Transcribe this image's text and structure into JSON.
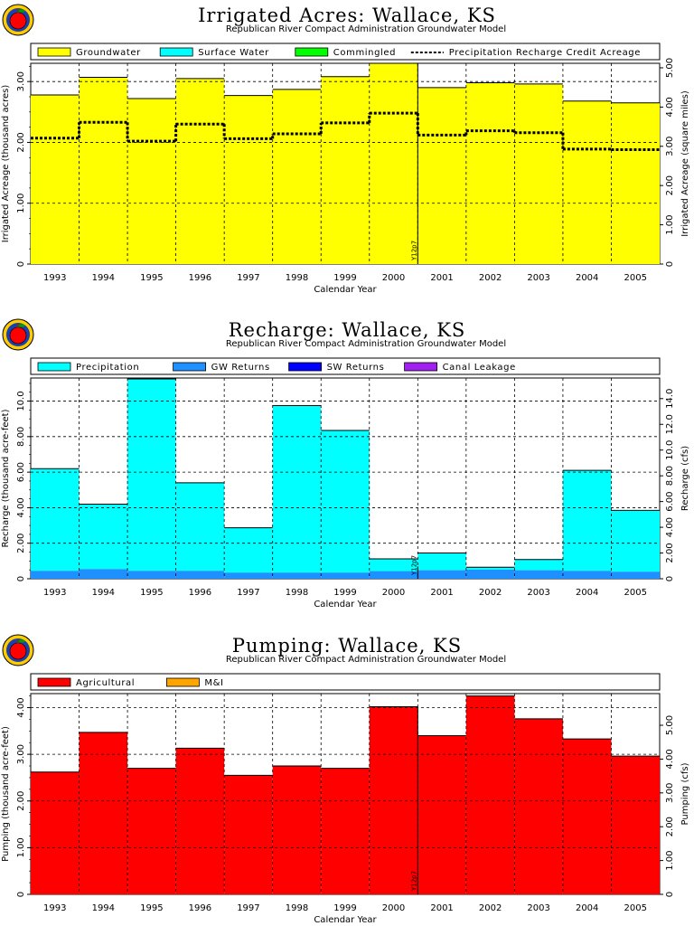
{
  "chart_data": [
    {
      "type": "bar",
      "title": "Irrigated Acres: Wallace, KS",
      "subtitle": "Republican River Compact Administration Groundwater Model",
      "xlabel": "Calendar Year",
      "ylabel": "Irrigated Acreage (thousand acres)",
      "ylabel_right": "Irrigated Acreage (square miles)",
      "ylim": [
        0,
        3.3
      ],
      "categories": [
        "1993",
        "1994",
        "1995",
        "1996",
        "1997",
        "1998",
        "1999",
        "2000",
        "2001",
        "2002",
        "2003",
        "2004",
        "2005"
      ],
      "yticks": [
        {
          "v": 0,
          "l": "0"
        },
        {
          "v": 1,
          "l": "1.00"
        },
        {
          "v": 2,
          "l": "2.00"
        },
        {
          "v": 3,
          "l": "3.00"
        }
      ],
      "yticks_right": [
        {
          "v": 0,
          "l": "0"
        },
        {
          "v": 1,
          "l": "1.00"
        },
        {
          "v": 2,
          "l": "2.00"
        },
        {
          "v": 3,
          "l": "3.00"
        },
        {
          "v": 4,
          "l": "4.00"
        },
        {
          "v": 5,
          "l": "5.00"
        }
      ],
      "right_scale": 0.6452,
      "grid_dashed": [
        1,
        2,
        3
      ],
      "stacked": true,
      "series": [
        {
          "name": "Groundwater",
          "color": "#ffff00",
          "values": [
            2.78,
            3.07,
            2.72,
            3.05,
            2.77,
            2.87,
            3.08,
            3.3,
            2.9,
            2.98,
            2.96,
            2.68,
            2.65
          ]
        },
        {
          "name": "Surface Water",
          "color": "#00ffff",
          "values": [
            0,
            0,
            0,
            0,
            0,
            0,
            0,
            0,
            0,
            0,
            0,
            0,
            0
          ]
        },
        {
          "name": "Commingled",
          "color": "#00ff00",
          "values": [
            0,
            0,
            0,
            0,
            0,
            0,
            0,
            0,
            0,
            0,
            0,
            0,
            0
          ]
        }
      ],
      "line_series": {
        "name": "Precipitation Recharge Credit Acreage",
        "values": [
          2.07,
          2.33,
          2.02,
          2.3,
          2.06,
          2.14,
          2.32,
          2.48,
          2.12,
          2.19,
          2.16,
          1.89,
          1.88
        ]
      },
      "annotation": "Y12p7"
    },
    {
      "type": "bar",
      "title": "Recharge: Wallace, KS",
      "subtitle": "Republican River Compact Administration Groundwater Model",
      "xlabel": "Calendar Year",
      "ylabel": "Recharge (thousand acre-feet)",
      "ylabel_right": "Recharge (cfs)",
      "ylim": [
        0,
        11.3
      ],
      "categories": [
        "1993",
        "1994",
        "1995",
        "1996",
        "1997",
        "1998",
        "1999",
        "2000",
        "2001",
        "2002",
        "2003",
        "2004",
        "2005"
      ],
      "yticks": [
        {
          "v": 0,
          "l": "0"
        },
        {
          "v": 2,
          "l": "2.00"
        },
        {
          "v": 4,
          "l": "4.00"
        },
        {
          "v": 6,
          "l": "6.00"
        },
        {
          "v": 8,
          "l": "8.00"
        },
        {
          "v": 10,
          "l": "10.0"
        }
      ],
      "yticks_right": [
        {
          "v": 0,
          "l": "0"
        },
        {
          "v": 2,
          "l": "2.00"
        },
        {
          "v": 4,
          "l": "4.00"
        },
        {
          "v": 6,
          "l": "6.00"
        },
        {
          "v": 8,
          "l": "8.00"
        },
        {
          "v": 10,
          "l": "10.0"
        },
        {
          "v": 12,
          "l": "12.0"
        },
        {
          "v": 14,
          "l": "14.0"
        }
      ],
      "right_scale": 0.7243,
      "grid_dashed": [
        2,
        4,
        6,
        8,
        10
      ],
      "stacked": true,
      "series": [
        {
          "name": "Precipitation",
          "color": "#00ffff",
          "values": [
            5.75,
            3.65,
            10.8,
            4.95,
            2.52,
            9.4,
            8.0,
            0.69,
            0.97,
            0.13,
            0.6,
            5.65,
            3.45
          ]
        },
        {
          "name": "GW Returns",
          "color": "#1e90ff",
          "values": [
            0.45,
            0.55,
            0.45,
            0.45,
            0.35,
            0.35,
            0.35,
            0.43,
            0.48,
            0.52,
            0.48,
            0.45,
            0.4
          ]
        },
        {
          "name": "SW Returns",
          "color": "#0000ff",
          "values": [
            0,
            0,
            0,
            0,
            0,
            0,
            0,
            0,
            0,
            0,
            0,
            0,
            0
          ]
        },
        {
          "name": "Canal Leakage",
          "color": "#a020f0",
          "values": [
            0,
            0,
            0,
            0,
            0,
            0,
            0,
            0,
            0,
            0,
            0,
            0,
            0
          ]
        }
      ],
      "annotation": "Y12p7"
    },
    {
      "type": "bar",
      "title": "Pumping: Wallace, KS",
      "subtitle": "Republican River Compact Administration Groundwater Model",
      "xlabel": "Calendar Year",
      "ylabel": "Pumping (thousand acre-feet)",
      "ylabel_right": "Pumping (cfs)",
      "ylim": [
        0,
        4.3
      ],
      "categories": [
        "1993",
        "1994",
        "1995",
        "1996",
        "1997",
        "1998",
        "1999",
        "2000",
        "2001",
        "2002",
        "2003",
        "2004",
        "2005"
      ],
      "yticks": [
        {
          "v": 0,
          "l": "0"
        },
        {
          "v": 1,
          "l": "1.00"
        },
        {
          "v": 2,
          "l": "2.00"
        },
        {
          "v": 3,
          "l": "3.00"
        },
        {
          "v": 4,
          "l": "4.00"
        }
      ],
      "yticks_right": [
        {
          "v": 0,
          "l": "0"
        },
        {
          "v": 1,
          "l": "1.00"
        },
        {
          "v": 2,
          "l": "2.00"
        },
        {
          "v": 3,
          "l": "3.00"
        },
        {
          "v": 4,
          "l": "4.00"
        },
        {
          "v": 5,
          "l": "5.00"
        }
      ],
      "right_scale": 0.7243,
      "grid_dashed": [
        1,
        2,
        3,
        4
      ],
      "stacked": true,
      "series": [
        {
          "name": "Agricultural",
          "color": "#ff0000",
          "values": [
            2.62,
            3.47,
            2.7,
            3.13,
            2.55,
            2.75,
            2.7,
            4.02,
            3.4,
            4.25,
            3.76,
            3.33,
            2.96
          ]
        },
        {
          "name": "M&I",
          "color": "#ffa500",
          "values": [
            0,
            0,
            0,
            0,
            0,
            0,
            0,
            0,
            0,
            0,
            0,
            0,
            0
          ]
        }
      ],
      "annotation": "Y12p7"
    }
  ]
}
